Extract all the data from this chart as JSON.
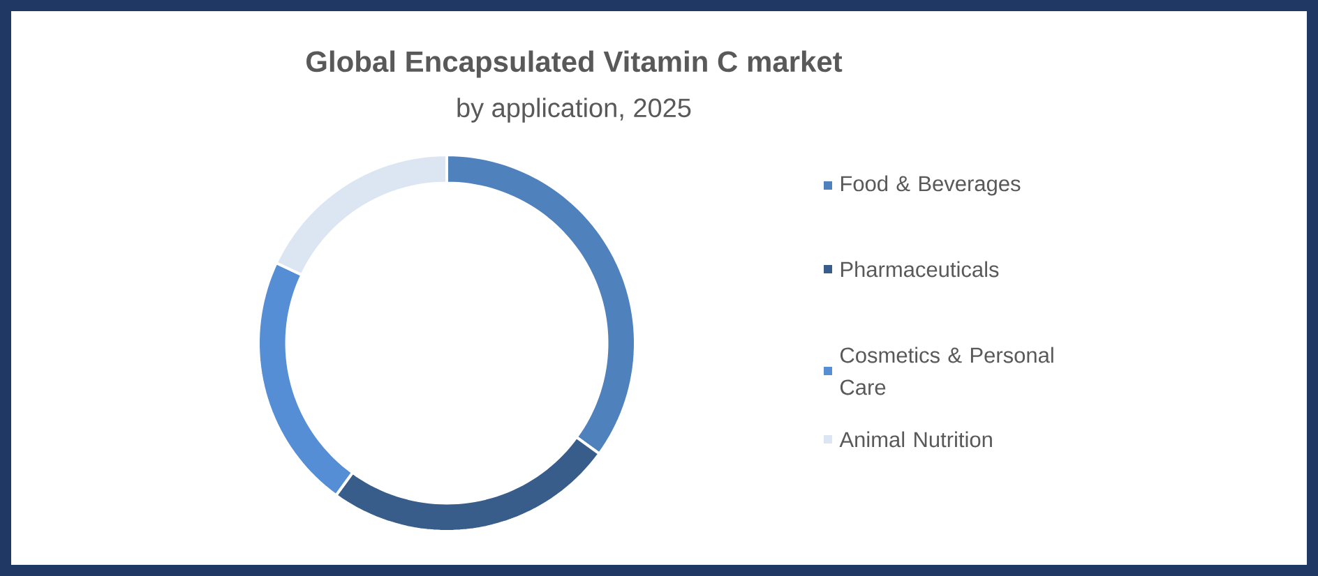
{
  "chart_data": {
    "type": "donut",
    "title": "Global Encapsulated Vitamin C market",
    "subtitle": "by application, 2025",
    "categories": [
      "Food & Beverages",
      "Pharmaceuticals",
      "Cosmetics & Personal Care",
      "Animal Nutrition"
    ],
    "values": [
      35,
      25,
      22,
      18
    ],
    "colors": [
      "#4f81bd",
      "#385d8a",
      "#558ed5",
      "#dce6f2"
    ],
    "legend": "right"
  }
}
